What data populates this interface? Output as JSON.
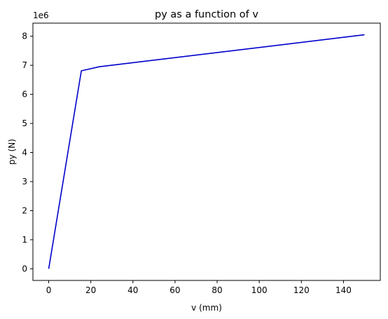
{
  "chart_data": {
    "type": "line",
    "title": "py as a function of v",
    "xlabel": "v (mm)",
    "ylabel": "py (N)",
    "y_multiplier_label": "1e6",
    "xlim": [
      -7.5,
      157.5
    ],
    "ylim": [
      -0.4,
      8.45
    ],
    "x_ticks": [
      0,
      20,
      40,
      60,
      80,
      100,
      120,
      140
    ],
    "y_ticks": [
      0,
      1,
      2,
      3,
      4,
      5,
      6,
      7,
      8
    ],
    "grid": false,
    "series": [
      {
        "color": "#0000cc",
        "x": [
          0,
          15.5,
          24,
          150
        ],
        "y": [
          0,
          6.81,
          6.95,
          8.05
        ]
      }
    ]
  }
}
